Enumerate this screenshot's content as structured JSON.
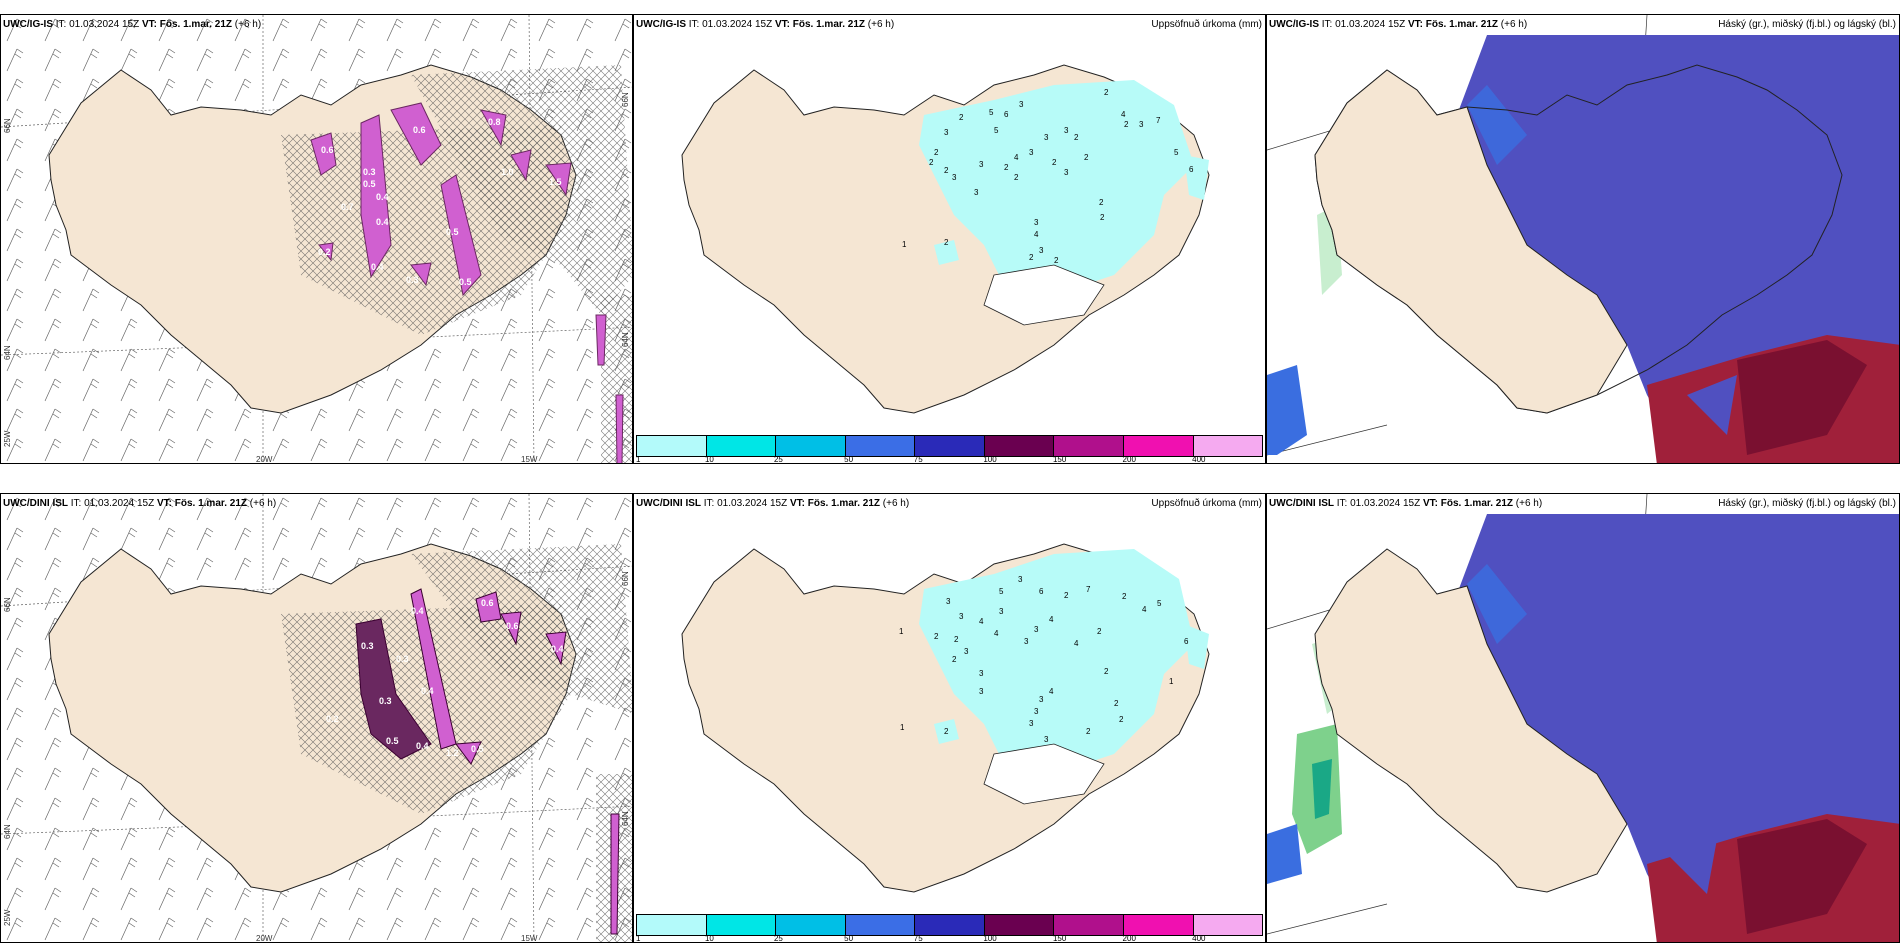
{
  "rows": [
    {
      "model": "UWC/IG-IS",
      "it": "IT: 01.03.2024 15Z",
      "vt_label": "VT:",
      "vt": "Fös. 1.mar. 21Z",
      "lead": "(+6 h)"
    },
    {
      "model": "UWC/DINI ISL",
      "it": "IT: 01.03.2024 15Z",
      "vt_label": "VT:",
      "vt": "Fös. 1.mar. 21Z",
      "lead": "(+6 h)"
    }
  ],
  "precip_title": "Uppsöfnuð úrkoma (mm)",
  "cloud_title": "Háský (gr.), miðský (fj.bl.) og lágský (bl.)",
  "lon_labels": [
    "20W",
    "15W"
  ],
  "lat_labels_left": [
    "66N",
    "64N",
    "25W"
  ],
  "lat_labels_right": [
    "66N",
    "64N"
  ],
  "legend": {
    "colors": [
      "#b3fafa",
      "#00e6e6",
      "#00bfe6",
      "#3b6ee6",
      "#2a2ab8",
      "#6a0050",
      "#b0108c",
      "#f010b0",
      "#f5aaf0"
    ],
    "ticks": [
      "1",
      "10",
      "25",
      "50",
      "75",
      "100",
      "150",
      "200",
      "400"
    ]
  },
  "icing_values": {
    "top": [
      "0.6",
      "0.6",
      "0.8",
      "0.3",
      "0.5",
      "0.4",
      "0.7",
      "1.0",
      "0.5",
      "0.2",
      "0.4",
      "0.4",
      "1.5",
      "0.5",
      "0.3"
    ],
    "bottom": [
      "0.4",
      "0.6",
      "0.3",
      "0.3",
      "0.5",
      "0.4",
      "1.2",
      "0.5",
      "0.6",
      "0.2",
      "0.4",
      "0.4",
      "0.3"
    ]
  },
  "precip_values": {
    "top": [
      "2",
      "3",
      "2",
      "3",
      "2",
      "2",
      "3",
      "3",
      "5",
      "6",
      "3",
      "4",
      "3",
      "3",
      "2",
      "5",
      "2",
      "2",
      "3",
      "2",
      "2",
      "3",
      "3",
      "2",
      "4",
      "2",
      "3",
      "4",
      "7",
      "5",
      "6",
      "2",
      "2",
      "2",
      "2",
      "1",
      "3",
      "2"
    ],
    "bottom": [
      "1",
      "2",
      "3",
      "2",
      "3",
      "3",
      "2",
      "4",
      "3",
      "4",
      "3",
      "5",
      "3",
      "6",
      "3",
      "7",
      "4",
      "4",
      "2",
      "2",
      "2",
      "2",
      "3",
      "4",
      "3",
      "3",
      "2",
      "1",
      "2",
      "3",
      "6",
      "1",
      "2",
      "4",
      "5",
      "2",
      "3",
      "3"
    ]
  },
  "colors": {
    "land": "#f5e6d3",
    "land_hatch_bg": "#ecd9c2",
    "precip_cyan": "#b7fbf8",
    "icing_pink": "#d060d0",
    "icing_dark": "#6a2860",
    "high_cloud_blue": "#5050c0",
    "mid_cloud_blue": "#3a6ee0",
    "low_cloud_red": "#a0203a",
    "green": "#7ed18c"
  }
}
